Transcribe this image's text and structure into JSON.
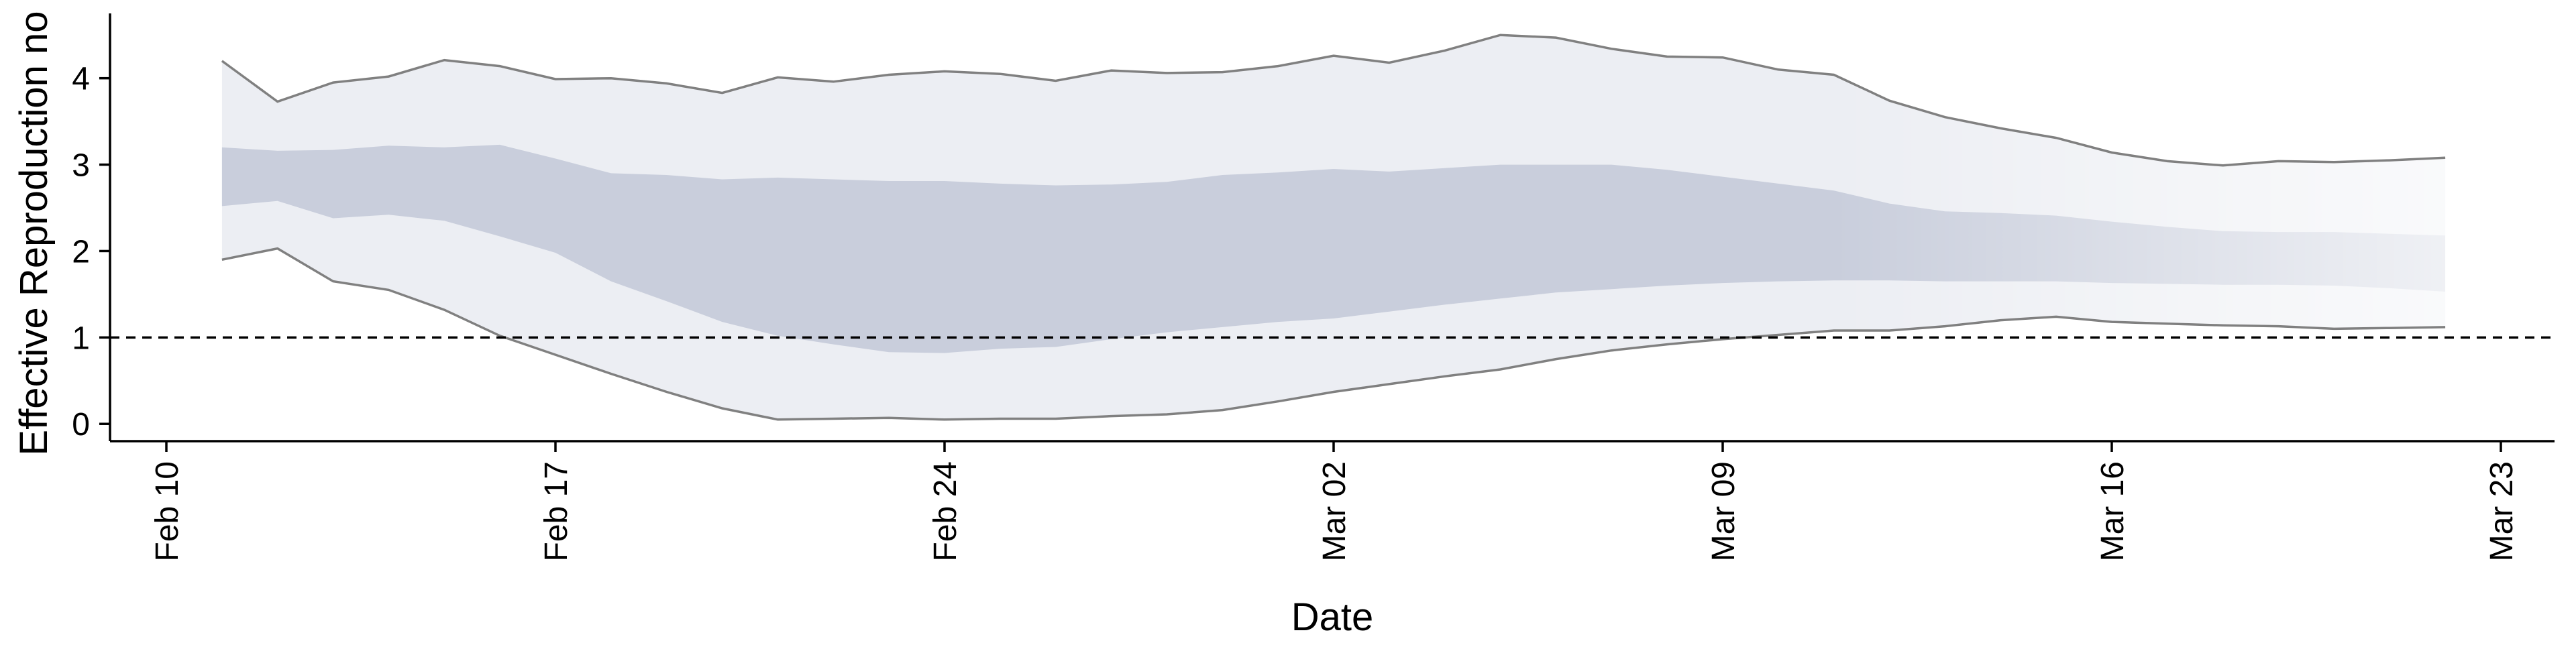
{
  "chart_data": {
    "type": "area",
    "title": "",
    "xlabel": "Date",
    "ylabel": "Effective Reproduction no",
    "x_axis": {
      "kind": "date",
      "range": [
        "2020-02-10",
        "2020-03-23"
      ],
      "ticks": [
        {
          "date": "2020-02-10",
          "label": "Feb 10"
        },
        {
          "date": "2020-02-17",
          "label": "Feb 17"
        },
        {
          "date": "2020-02-24",
          "label": "Feb 24"
        },
        {
          "date": "2020-03-02",
          "label": "Mar 02"
        },
        {
          "date": "2020-03-09",
          "label": "Mar 09"
        },
        {
          "date": "2020-03-16",
          "label": "Mar 16"
        },
        {
          "date": "2020-03-23",
          "label": "Mar 23"
        }
      ]
    },
    "y_axis": {
      "range": [
        -0.2,
        4.75
      ],
      "ticks": [
        0,
        1,
        2,
        3,
        4
      ]
    },
    "reference_line": {
      "y": 1,
      "style": "dashed",
      "color": "#000000"
    },
    "grid": false,
    "legend": "none",
    "colors": {
      "outer_band": "#eceef3",
      "inner_band": "#c9cedc",
      "band_edge_line": "#808080"
    },
    "dates": [
      "2020-02-11",
      "2020-02-12",
      "2020-02-13",
      "2020-02-14",
      "2020-02-15",
      "2020-02-16",
      "2020-02-17",
      "2020-02-18",
      "2020-02-19",
      "2020-02-20",
      "2020-02-21",
      "2020-02-22",
      "2020-02-23",
      "2020-02-24",
      "2020-02-25",
      "2020-02-26",
      "2020-02-27",
      "2020-02-28",
      "2020-02-29",
      "2020-03-01",
      "2020-03-02",
      "2020-03-03",
      "2020-03-04",
      "2020-03-05",
      "2020-03-06",
      "2020-03-07",
      "2020-03-08",
      "2020-03-09",
      "2020-03-10",
      "2020-03-11",
      "2020-03-12",
      "2020-03-13",
      "2020-03-14",
      "2020-03-15",
      "2020-03-16",
      "2020-03-17",
      "2020-03-18",
      "2020-03-19",
      "2020-03-20",
      "2020-03-21",
      "2020-03-22"
    ],
    "series": [
      {
        "role": "outer_upper",
        "values": [
          4.2,
          3.73,
          3.95,
          4.02,
          4.21,
          4.14,
          3.99,
          4.0,
          3.94,
          3.83,
          4.01,
          3.96,
          4.04,
          4.08,
          4.05,
          3.97,
          4.09,
          4.06,
          4.07,
          4.14,
          4.26,
          4.18,
          4.32,
          4.5,
          4.47,
          4.34,
          4.25,
          4.24,
          4.1,
          4.04,
          3.74,
          3.55,
          3.42,
          3.31,
          3.14,
          3.04,
          2.99,
          3.04,
          3.03,
          3.05,
          3.08
        ]
      },
      {
        "role": "inner_upper",
        "values": [
          3.2,
          3.16,
          3.17,
          3.22,
          3.2,
          3.23,
          3.07,
          2.9,
          2.88,
          2.83,
          2.85,
          2.83,
          2.81,
          2.81,
          2.78,
          2.76,
          2.77,
          2.8,
          2.88,
          2.91,
          2.95,
          2.92,
          2.96,
          3.0,
          3.0,
          3.0,
          2.94,
          2.86,
          2.78,
          2.7,
          2.55,
          2.46,
          2.44,
          2.41,
          2.34,
          2.28,
          2.23,
          2.22,
          2.22,
          2.2,
          2.18
        ]
      },
      {
        "role": "inner_lower",
        "values": [
          2.52,
          2.58,
          2.38,
          2.42,
          2.35,
          2.17,
          1.98,
          1.65,
          1.42,
          1.18,
          1.02,
          0.92,
          0.83,
          0.82,
          0.87,
          0.89,
          0.98,
          1.06,
          1.12,
          1.18,
          1.22,
          1.3,
          1.38,
          1.45,
          1.52,
          1.56,
          1.6,
          1.63,
          1.65,
          1.66,
          1.66,
          1.65,
          1.65,
          1.65,
          1.63,
          1.62,
          1.61,
          1.61,
          1.6,
          1.57,
          1.53
        ]
      },
      {
        "role": "outer_lower",
        "values": [
          1.9,
          2.03,
          1.65,
          1.55,
          1.32,
          1.02,
          0.8,
          0.58,
          0.37,
          0.18,
          0.05,
          0.06,
          0.07,
          0.05,
          0.06,
          0.06,
          0.09,
          0.11,
          0.16,
          0.26,
          0.37,
          0.46,
          0.55,
          0.63,
          0.75,
          0.85,
          0.92,
          0.98,
          1.03,
          1.08,
          1.08,
          1.13,
          1.2,
          1.24,
          1.18,
          1.16,
          1.14,
          1.13,
          1.1,
          1.11,
          1.12
        ]
      }
    ]
  }
}
